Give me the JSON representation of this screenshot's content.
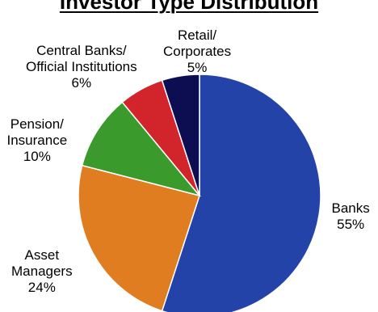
{
  "chart_data": {
    "type": "pie",
    "title": "Investor Type Distribution",
    "slices": [
      {
        "lines": [
          "Banks"
        ],
        "value": 55,
        "value_label": "55%",
        "color": "#2443a8"
      },
      {
        "lines": [
          "Asset",
          "Managers"
        ],
        "value": 24,
        "value_label": "24%",
        "color": "#e07d20"
      },
      {
        "lines": [
          "Pension/",
          "Insurance"
        ],
        "value": 10,
        "value_label": "10%",
        "color": "#3a9a2c"
      },
      {
        "lines": [
          "Central Banks/",
          "Official Institutions"
        ],
        "value": 6,
        "value_label": "6%",
        "color": "#d1252b"
      },
      {
        "lines": [
          "Retail/",
          "Corporates"
        ],
        "value": 5,
        "value_label": "5%",
        "color": "#0d0d52"
      }
    ],
    "start_angle_deg": 0,
    "direction": "clockwise",
    "slice_border_color": "#ffffff"
  }
}
